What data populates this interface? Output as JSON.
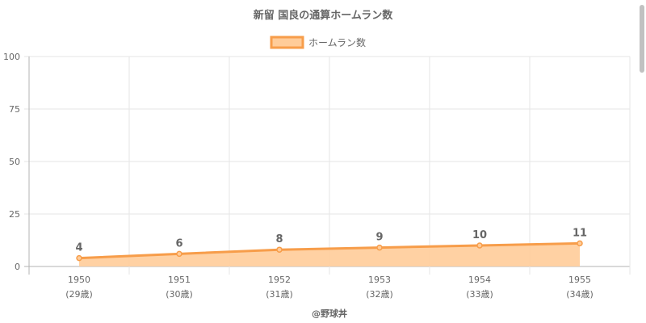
{
  "chart_data": {
    "type": "area",
    "title": "新留 国良の通算ホームラン数",
    "legend": {
      "label": "ホームラン数",
      "position": "top"
    },
    "categories": [
      "1950",
      "1951",
      "1952",
      "1953",
      "1954",
      "1955"
    ],
    "sublabels": [
      "(29歳)",
      "(30歳)",
      "(31歳)",
      "(32歳)",
      "(33歳)",
      "(34歳)"
    ],
    "series": [
      {
        "name": "ホームラン数",
        "values": [
          4,
          6,
          8,
          9,
          10,
          11
        ]
      }
    ],
    "ylim": [
      0,
      100
    ],
    "yticks": [
      "0",
      "25",
      "50",
      "75",
      "100"
    ],
    "grid": true,
    "colors": {
      "line": "#f79d4a",
      "fill": "#ffcc99",
      "grid": "#e6e6e6",
      "text": "#666666"
    }
  },
  "footer": {
    "credit": "@野球丼"
  }
}
